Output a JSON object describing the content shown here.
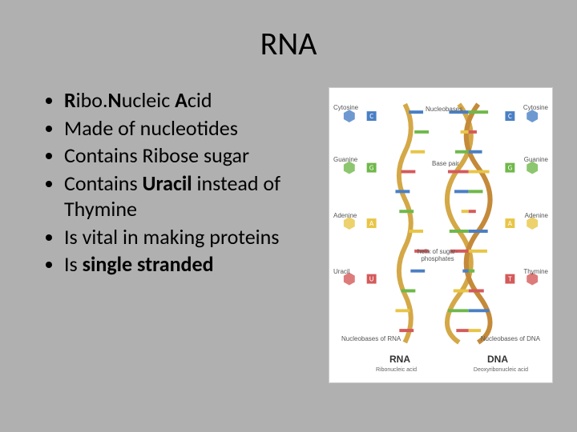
{
  "title": "RNA",
  "bullets": [
    {
      "pre": "",
      "bold": "R",
      "mid": "ibo.",
      "bold2": "N",
      "mid2": "ucleic ",
      "bold3": "A",
      "post": "cid"
    },
    {
      "text": "Made of nucleotides"
    },
    {
      "text": "Contains Ribose sugar"
    },
    {
      "pre": "Contains ",
      "bold": "Uracil",
      "post": " instead of Thymine"
    },
    {
      "text": "Is vital in making proteins"
    },
    {
      "pre": "Is ",
      "bold": "single stranded",
      "post": ""
    }
  ],
  "diagram": {
    "background": "#ffffff",
    "rna_label": "RNA",
    "rna_sublabel": "Ribonucleic acid",
    "dna_label": "DNA",
    "dna_sublabel": "Deoxyribonucleic acid",
    "left_bases": [
      {
        "name": "Cytosine",
        "color": "#4a7fc4",
        "code": "C"
      },
      {
        "name": "Guanine",
        "color": "#6fb84a",
        "code": "G"
      },
      {
        "name": "Adenine",
        "color": "#e8c547",
        "code": "A"
      },
      {
        "name": "Uracil",
        "color": "#d45a5a",
        "code": "U"
      }
    ],
    "right_bases": [
      {
        "name": "Cytosine",
        "color": "#4a7fc4",
        "code": "C"
      },
      {
        "name": "Guanine",
        "color": "#6fb84a",
        "code": "G"
      },
      {
        "name": "Adenine",
        "color": "#e8c547",
        "code": "A"
      },
      {
        "name": "Thymine",
        "color": "#d45a5a",
        "code": "T"
      }
    ],
    "center_labels": [
      "Nucleobases",
      "Base pair",
      "helix of sugar-phosphates"
    ],
    "bottom_left": "Nucleobases of RNA",
    "bottom_right": "Nucleobases of DNA",
    "rna_strand": {
      "backbone_color": "#d4a847",
      "rung_colors": [
        "#4a7fc4",
        "#6fb84a",
        "#e8c547",
        "#d45a5a",
        "#4a7fc4",
        "#6fb84a",
        "#e8c547",
        "#d45a5a",
        "#4a7fc4",
        "#6fb84a",
        "#e8c547",
        "#d45a5a"
      ]
    },
    "dna_strand": {
      "backbone_colors": [
        "#d4a847",
        "#c48a3a"
      ],
      "rung_pairs": [
        [
          "#4a7fc4",
          "#6fb84a"
        ],
        [
          "#e8c547",
          "#d45a5a"
        ],
        [
          "#6fb84a",
          "#4a7fc4"
        ],
        [
          "#d45a5a",
          "#e8c547"
        ],
        [
          "#4a7fc4",
          "#6fb84a"
        ],
        [
          "#e8c547",
          "#d45a5a"
        ],
        [
          "#6fb84a",
          "#4a7fc4"
        ],
        [
          "#d45a5a",
          "#e8c547"
        ],
        [
          "#4a7fc4",
          "#6fb84a"
        ],
        [
          "#e8c547",
          "#d45a5a"
        ],
        [
          "#6fb84a",
          "#4a7fc4"
        ],
        [
          "#d45a5a",
          "#e8c547"
        ]
      ]
    }
  }
}
